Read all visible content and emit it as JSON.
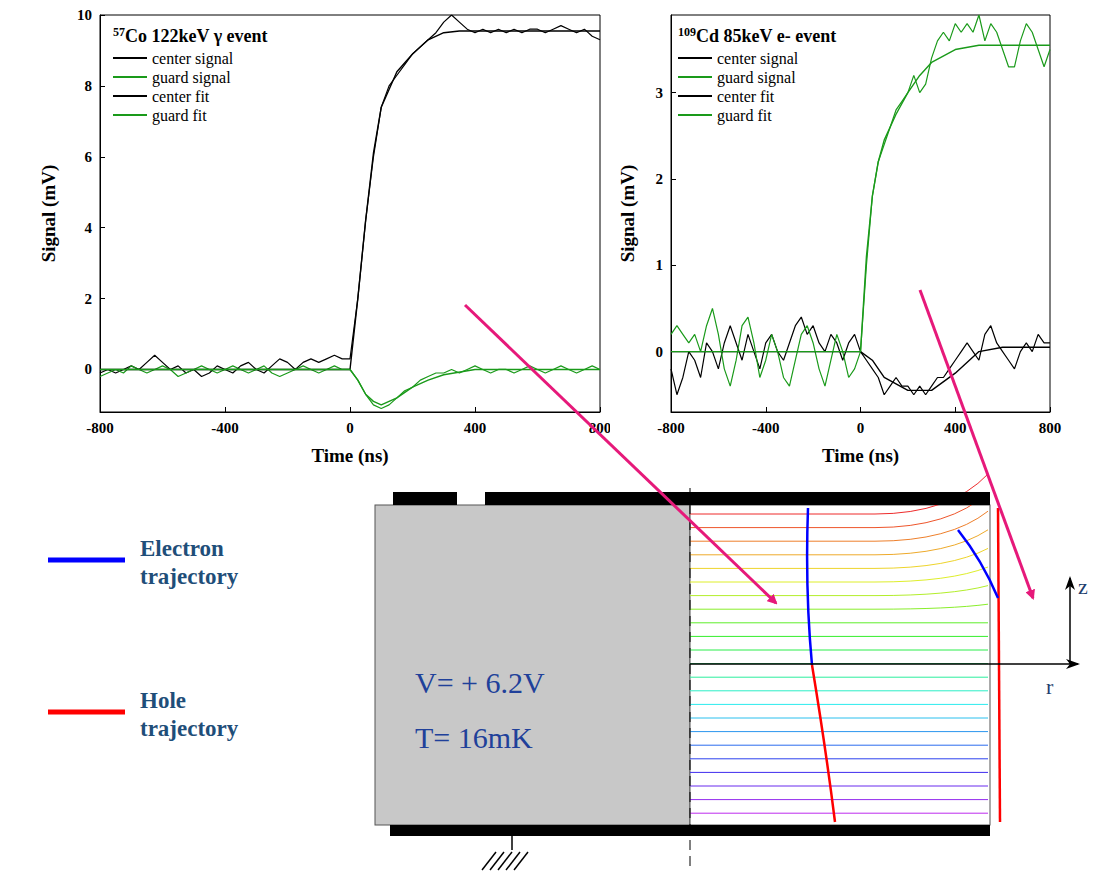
{
  "chart_data": [
    {
      "type": "line",
      "title": "57Co 122keV γ event",
      "x_label": "Time (ns)",
      "y_label": "Signal (mV)",
      "xlim": [
        -800,
        800
      ],
      "xticks": [
        -800,
        -400,
        0,
        400,
        800
      ],
      "ylim": [
        -1.2,
        10
      ],
      "yticks": [
        0,
        2,
        4,
        6,
        8,
        10
      ],
      "grid": false,
      "legend": "upper left",
      "series": [
        {
          "name": "center signal",
          "color": "#000000",
          "line_style": "solid",
          "x": [
            -800,
            -775,
            -750,
            -725,
            -700,
            -675,
            -650,
            -625,
            -600,
            -575,
            -550,
            -525,
            -500,
            -475,
            -450,
            -425,
            -400,
            -375,
            -350,
            -325,
            -300,
            -275,
            -250,
            -225,
            -200,
            -175,
            -150,
            -125,
            -100,
            -75,
            -50,
            -25,
            0,
            25,
            50,
            75,
            100,
            125,
            150,
            175,
            200,
            225,
            250,
            275,
            300,
            325,
            350,
            375,
            400,
            425,
            450,
            475,
            500,
            525,
            550,
            575,
            600,
            625,
            650,
            675,
            700,
            725,
            750,
            775,
            800
          ],
          "values": [
            -0.1,
            0.0,
            -0.1,
            0.0,
            0.1,
            0.0,
            0.2,
            0.4,
            0.2,
            0.0,
            0.1,
            -0.1,
            0.0,
            -0.2,
            -0.1,
            0.1,
            0.0,
            -0.1,
            0.1,
            0.2,
            0.0,
            -0.1,
            0.1,
            0.3,
            0.2,
            0.0,
            0.2,
            0.3,
            0.2,
            0.3,
            0.4,
            0.3,
            0.3,
            2.0,
            4.2,
            6.0,
            7.4,
            8.0,
            8.3,
            8.6,
            8.9,
            9.1,
            9.3,
            9.5,
            9.8,
            10.0,
            9.8,
            9.6,
            9.5,
            9.6,
            9.5,
            9.6,
            9.5,
            9.6,
            9.5,
            9.6,
            9.6,
            9.5,
            9.6,
            9.7,
            9.6,
            9.5,
            9.6,
            9.4,
            9.3
          ]
        },
        {
          "name": "guard signal",
          "color": "#1a9a1a",
          "line_style": "solid",
          "x": [
            -800,
            -775,
            -750,
            -725,
            -700,
            -675,
            -650,
            -625,
            -600,
            -575,
            -550,
            -525,
            -500,
            -475,
            -450,
            -425,
            -400,
            -375,
            -350,
            -325,
            -300,
            -275,
            -250,
            -225,
            -200,
            -175,
            -150,
            -125,
            -100,
            -75,
            -50,
            -25,
            0,
            25,
            50,
            75,
            100,
            125,
            150,
            175,
            200,
            225,
            250,
            275,
            300,
            325,
            350,
            375,
            400,
            425,
            450,
            475,
            500,
            525,
            550,
            575,
            600,
            625,
            650,
            675,
            700,
            725,
            750,
            775,
            800
          ],
          "values": [
            -0.2,
            -0.1,
            0.0,
            -0.1,
            0.1,
            0.0,
            -0.1,
            0.0,
            0.1,
            0.0,
            -0.2,
            -0.1,
            0.0,
            0.1,
            0.0,
            -0.1,
            0.0,
            0.1,
            0.0,
            -0.1,
            0.0,
            0.1,
            -0.1,
            -0.2,
            -0.1,
            0.0,
            0.1,
            0.0,
            -0.1,
            0.0,
            0.1,
            0.0,
            0.0,
            -0.3,
            -0.7,
            -1.0,
            -1.1,
            -1.0,
            -0.8,
            -0.6,
            -0.5,
            -0.3,
            -0.2,
            -0.1,
            -0.1,
            0.0,
            -0.1,
            0.0,
            0.1,
            0.0,
            -0.1,
            0.0,
            0.0,
            -0.1,
            0.0,
            0.1,
            0.0,
            -0.1,
            0.0,
            0.1,
            0.0,
            -0.1,
            0.0,
            0.1,
            0.0
          ]
        },
        {
          "name": "center fit",
          "color": "#000000",
          "line_style": "solid",
          "x": [
            -800,
            0,
            25,
            50,
            75,
            100,
            150,
            200,
            250,
            300,
            350,
            400,
            800
          ],
          "values": [
            0,
            0,
            2.0,
            4.2,
            6.1,
            7.4,
            8.4,
            8.9,
            9.3,
            9.5,
            9.55,
            9.55,
            9.55
          ]
        },
        {
          "name": "guard fit",
          "color": "#1a9a1a",
          "line_style": "solid",
          "x": [
            -800,
            0,
            25,
            50,
            75,
            100,
            150,
            200,
            250,
            300,
            400,
            800
          ],
          "values": [
            0,
            0,
            -0.3,
            -0.7,
            -0.9,
            -1.0,
            -0.8,
            -0.5,
            -0.3,
            -0.15,
            0,
            0
          ]
        }
      ]
    },
    {
      "type": "line",
      "title": "109Cd 85keV e- event",
      "x_label": "Time (ns)",
      "y_label": "Signal (mV)",
      "xlim": [
        -800,
        800
      ],
      "xticks": [
        -800,
        -400,
        0,
        400,
        800
      ],
      "ylim": [
        -0.7,
        3.9
      ],
      "yticks": [
        0,
        1,
        2,
        3
      ],
      "grid": false,
      "legend": "upper left",
      "series": [
        {
          "name": "center signal",
          "color": "#000000",
          "line_style": "solid",
          "x": [
            -800,
            -775,
            -750,
            -725,
            -700,
            -675,
            -650,
            -625,
            -600,
            -575,
            -550,
            -525,
            -500,
            -475,
            -450,
            -425,
            -400,
            -375,
            -350,
            -325,
            -300,
            -275,
            -250,
            -225,
            -200,
            -175,
            -150,
            -125,
            -100,
            -75,
            -50,
            -25,
            0,
            25,
            50,
            75,
            100,
            125,
            150,
            175,
            200,
            225,
            250,
            275,
            300,
            325,
            350,
            375,
            400,
            425,
            450,
            475,
            500,
            525,
            550,
            575,
            600,
            625,
            650,
            675,
            700,
            725,
            750,
            775,
            800
          ],
          "values": [
            -0.2,
            -0.5,
            -0.3,
            0.0,
            -0.1,
            -0.3,
            0.1,
            0.0,
            -0.2,
            0.1,
            0.3,
            0.1,
            -0.1,
            0.2,
            0.0,
            -0.2,
            0.1,
            0.2,
            0.0,
            -0.1,
            0.1,
            0.3,
            0.4,
            0.2,
            0.3,
            0.1,
            0.0,
            0.2,
            0.1,
            -0.1,
            0.1,
            0.2,
            0.0,
            -0.1,
            -0.2,
            -0.3,
            -0.5,
            -0.4,
            -0.3,
            -0.4,
            -0.4,
            -0.5,
            -0.4,
            -0.5,
            -0.4,
            -0.3,
            -0.3,
            -0.2,
            -0.1,
            0.0,
            0.1,
            0.0,
            -0.1,
            0.2,
            0.3,
            0.1,
            0.0,
            -0.1,
            -0.2,
            0.0,
            0.1,
            0.0,
            0.2,
            0.1,
            0.1
          ]
        },
        {
          "name": "guard signal",
          "color": "#1a9a1a",
          "line_style": "solid",
          "x": [
            -800,
            -775,
            -750,
            -725,
            -700,
            -675,
            -650,
            -625,
            -600,
            -575,
            -550,
            -525,
            -500,
            -475,
            -450,
            -425,
            -400,
            -375,
            -350,
            -325,
            -300,
            -275,
            -250,
            -225,
            -200,
            -175,
            -150,
            -125,
            -100,
            -75,
            -50,
            -25,
            0,
            25,
            50,
            75,
            100,
            125,
            150,
            175,
            200,
            225,
            250,
            275,
            300,
            325,
            350,
            375,
            400,
            425,
            450,
            475,
            500,
            525,
            550,
            575,
            600,
            625,
            650,
            675,
            700,
            725,
            750,
            775,
            800
          ],
          "values": [
            0.2,
            0.3,
            0.2,
            0.1,
            0.2,
            0.0,
            0.3,
            0.5,
            0.2,
            -0.2,
            -0.4,
            -0.1,
            0.3,
            0.4,
            0.1,
            -0.3,
            -0.1,
            0.2,
            0.0,
            -0.3,
            -0.4,
            -0.1,
            0.2,
            0.3,
            0.1,
            -0.2,
            -0.4,
            -0.1,
            0.2,
            0.0,
            -0.3,
            -0.2,
            0.0,
            1.0,
            1.8,
            2.2,
            2.4,
            2.6,
            2.8,
            2.9,
            3.0,
            3.2,
            3.0,
            3.1,
            3.4,
            3.6,
            3.7,
            3.6,
            3.8,
            3.7,
            3.8,
            3.7,
            3.9,
            3.6,
            3.8,
            3.7,
            3.5,
            3.3,
            3.3,
            3.6,
            3.8,
            3.7,
            3.5,
            3.3,
            3.5
          ]
        },
        {
          "name": "center fit",
          "color": "#000000",
          "line_style": "solid",
          "x": [
            -800,
            0,
            50,
            100,
            200,
            300,
            400,
            500,
            600,
            800
          ],
          "values": [
            0,
            0,
            -0.1,
            -0.3,
            -0.45,
            -0.45,
            -0.25,
            0.0,
            0.05,
            0.05
          ]
        },
        {
          "name": "guard fit",
          "color": "#1a9a1a",
          "line_style": "solid",
          "x": [
            -800,
            0,
            25,
            50,
            75,
            100,
            150,
            200,
            250,
            300,
            400,
            500,
            800
          ],
          "values": [
            0,
            0,
            1.1,
            1.8,
            2.2,
            2.45,
            2.75,
            3.0,
            3.2,
            3.35,
            3.5,
            3.55,
            3.55
          ]
        }
      ]
    }
  ],
  "diagram": {
    "legend": [
      {
        "label": "Electron trajectory",
        "color": "#0000ff"
      },
      {
        "label": "Hole trajectory",
        "color": "#ff0000"
      }
    ],
    "conditions": [
      "V= + 6.2V",
      "T= 16mK"
    ],
    "axes": [
      "z",
      "r"
    ]
  }
}
